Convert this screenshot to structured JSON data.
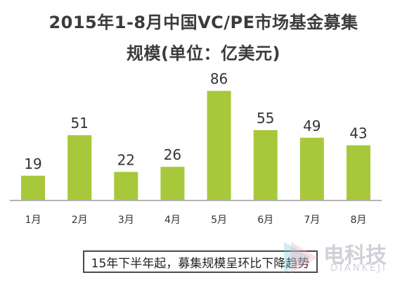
{
  "title": {
    "line1": "2015年1-8月中国VC/PE市场基金募集",
    "line2": "规模(单位：亿美元)"
  },
  "chart_data": {
    "type": "bar",
    "categories": [
      "1月",
      "2月",
      "3月",
      "4月",
      "5月",
      "6月",
      "7月",
      "8月"
    ],
    "values": [
      19,
      51,
      22,
      26,
      86,
      55,
      49,
      43
    ],
    "title": "2015年1-8月中国VC/PE市场基金募集规模(单位：亿美元)",
    "xlabel": "",
    "ylabel": "",
    "ylim": [
      0,
      90
    ],
    "grid": false,
    "legend": "none",
    "bar_color": "#a6c83a",
    "axis_color": "#9a9a9a",
    "label_color": "#333333"
  },
  "note": "15年下半年起，募集规模呈环比下降趋势",
  "watermark": {
    "text": "电科技",
    "sub": "DIANKEJI",
    "icon": "diankeji-logo-icon"
  }
}
